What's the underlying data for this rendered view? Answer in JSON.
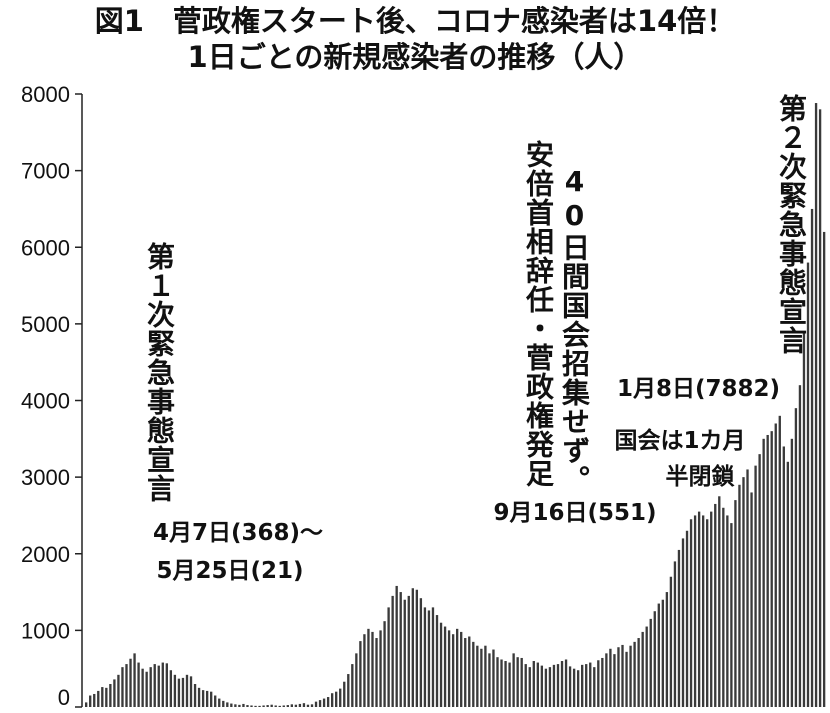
{
  "chart_data": {
    "type": "bar",
    "title": "図1　菅政権スタート後、コロナ感染者は14倍！",
    "subtitle": "1日ごとの新規感染者の推移（人）",
    "ylim": [
      0,
      8000
    ],
    "yticks": [
      "0",
      "1000",
      "2000",
      "3000",
      "4000",
      "5000",
      "6000",
      "7000",
      "8000"
    ],
    "ytick_values": [
      0,
      1000,
      2000,
      3000,
      4000,
      5000,
      6000,
      7000,
      8000
    ],
    "grid": false,
    "values": [
      60,
      150,
      170,
      210,
      260,
      250,
      300,
      360,
      420,
      520,
      560,
      630,
      700,
      580,
      500,
      460,
      520,
      560,
      540,
      580,
      570,
      480,
      420,
      370,
      380,
      420,
      400,
      300,
      250,
      220,
      210,
      200,
      150,
      110,
      80,
      60,
      45,
      35,
      28,
      40,
      25,
      20,
      15,
      15,
      20,
      25,
      30,
      20,
      15,
      20,
      25,
      35,
      30,
      40,
      50,
      30,
      35,
      70,
      90,
      110,
      130,
      180,
      200,
      240,
      330,
      430,
      560,
      700,
      860,
      950,
      1020,
      980,
      900,
      1000,
      1120,
      1300,
      1450,
      1580,
      1500,
      1400,
      1450,
      1550,
      1530,
      1420,
      1300,
      1260,
      1300,
      1200,
      1100,
      1050,
      1000,
      950,
      1020,
      980,
      900,
      920,
      850,
      800,
      760,
      800,
      700,
      750,
      650,
      620,
      600,
      580,
      700,
      650,
      640,
      560,
      520,
      600,
      580,
      540,
      500,
      520,
      550,
      560,
      600,
      620,
      530,
      500,
      480,
      550,
      560,
      580,
      520,
      610,
      640,
      700,
      760,
      690,
      780,
      810,
      720,
      800,
      850,
      900,
      980,
      1050,
      1150,
      1250,
      1350,
      1400,
      1500,
      1700,
      1900,
      2050,
      2200,
      2300,
      2450,
      2500,
      2550,
      2500,
      2450,
      2550,
      2650,
      2750,
      2600,
      2500,
      2400,
      2700,
      2900,
      3000,
      3100,
      2800,
      3150,
      3300,
      3500,
      3550,
      3600,
      3700,
      3800,
      3400,
      3200,
      3500,
      3900,
      4200,
      4900,
      5800,
      6500,
      7882,
      7800,
      6200
    ]
  },
  "annotations": {
    "decl1_vertical": "第１次緊急事態宣言",
    "decl1_date1": "4月7日(368)～",
    "decl1_date2": "5月25日(21)",
    "abe_vertical": "安倍首相辞任・菅政権発足",
    "diet_vertical": "40日間国会招集せず。",
    "suga_date": "9月16日(551)",
    "halfclosed1": "国会は1カ月",
    "halfclosed2": "半閉鎖",
    "jan8": "1月8日(7882)",
    "decl2_vertical": "第２次緊急事態宣言"
  }
}
